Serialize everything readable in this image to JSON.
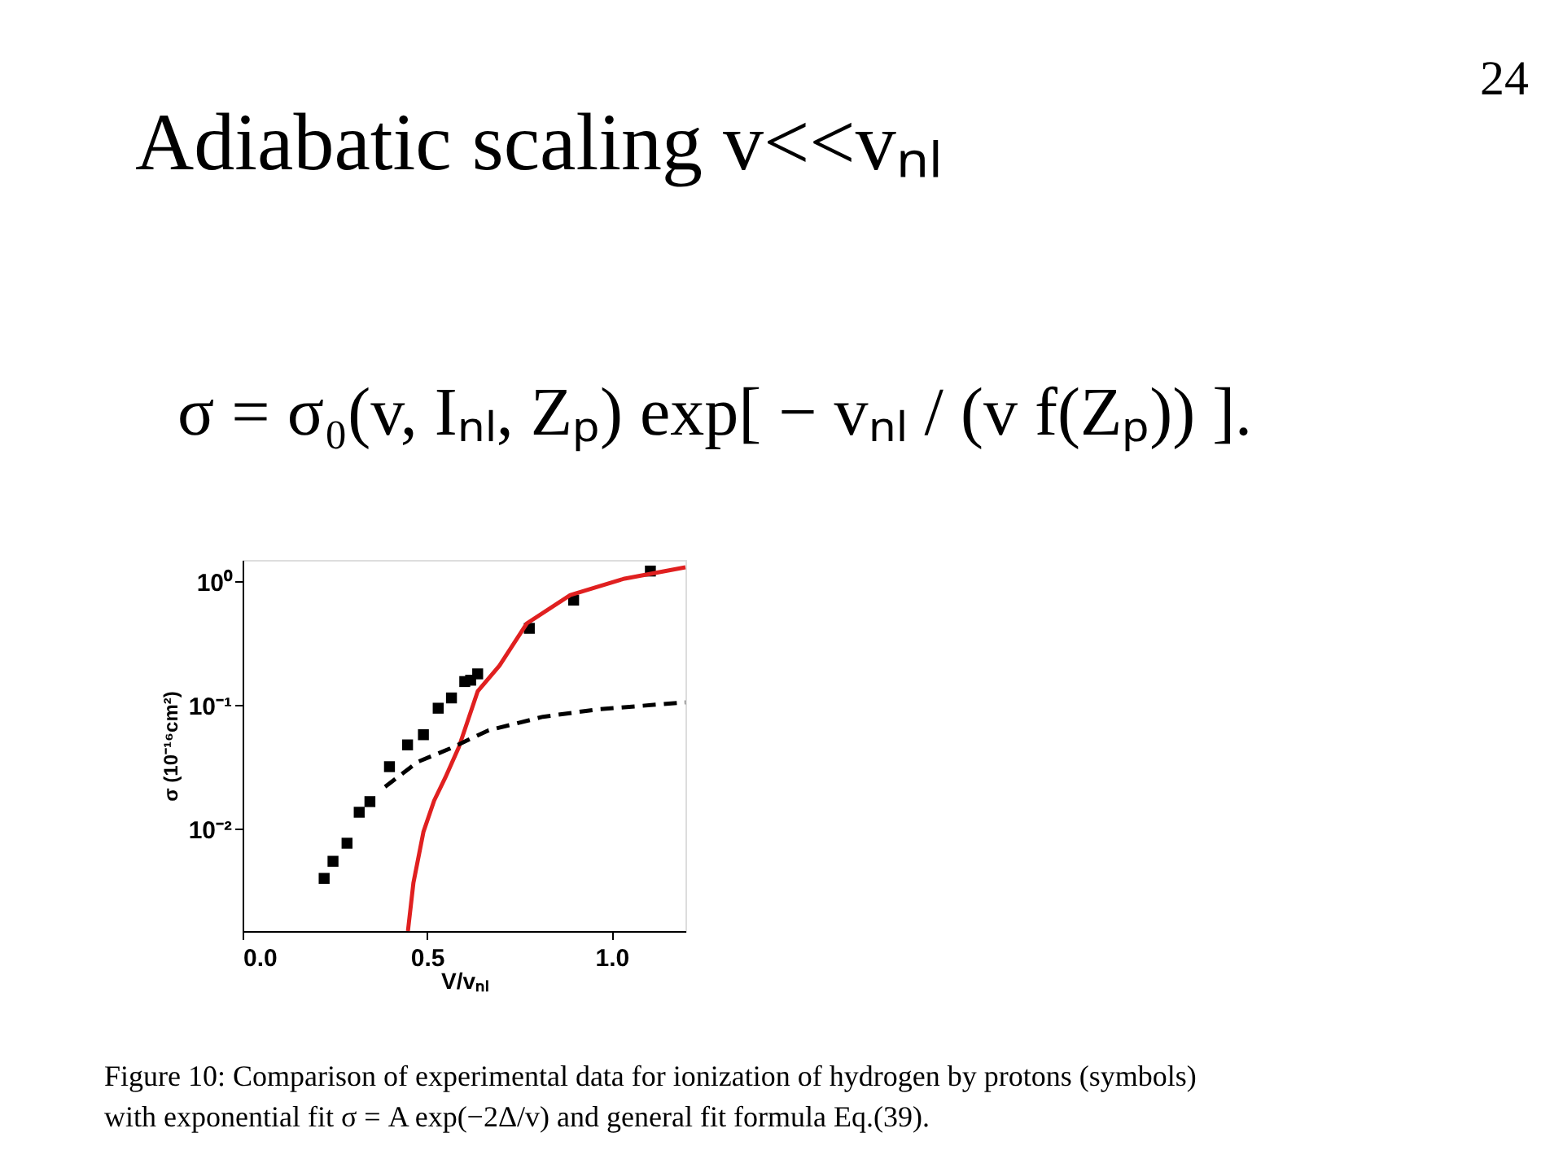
{
  "chart_data": {
    "type": "scatter",
    "title": "Adiabatic scaling v<<vₙₗ",
    "xlabel": "V/vₙₗ",
    "ylabel": "σ (10⁻¹⁶cm²)",
    "annotations": [
      "24",
      "σ = σ₀(v, Iₙₗ, Zₚ) exp[ − vₙₗ / (v f(Zₚ)) ].",
      "Figure 10: Comparison of experimental data for ionization of hydrogen by protons (symbols)",
      "with exponential fit σ = A exp(−2Δ/v) and general fit formula Eq.(39)."
    ],
    "log": "y",
    "grid": false,
    "xlim": [
      0,
      1.2
    ],
    "ylim": [
      0.0015,
      1.5
    ],
    "xticks": [
      {
        "value": 0,
        "label": "0.0"
      },
      0.5,
      {
        "value": 1,
        "label": "1.0"
      }
    ],
    "yticks": [
      {
        "value": 0.01,
        "label": "10⁻²"
      },
      {
        "value": 0.1,
        "label": "10⁻¹"
      },
      {
        "value": 1,
        "label": "10⁰"
      }
    ],
    "series": [
      {
        "color": "#000000",
        "marker": "square",
        "x": [
          0.221,
          0.245,
          0.283,
          0.316,
          0.345,
          0.398,
          0.447,
          0.49,
          0.53,
          0.566,
          0.602,
          0.618,
          0.637,
          0.777,
          0.897,
          1.105
        ],
        "values": [
          0.004,
          0.0055,
          0.0077,
          0.0137,
          0.0167,
          0.032,
          0.048,
          0.058,
          0.095,
          0.115,
          0.156,
          0.16,
          0.18,
          0.42,
          0.71,
          1.22
        ]
      },
      {
        "type": "line",
        "color": "#e02020",
        "line_style": "solid",
        "marker": "none",
        "x": [
          0.448,
          0.463,
          0.49,
          0.519,
          0.549,
          0.586,
          0.637,
          0.696,
          0.77,
          0.888,
          1.035,
          1.2
        ],
        "values": [
          0.0015,
          0.0037,
          0.0095,
          0.017,
          0.026,
          0.046,
          0.13,
          0.21,
          0.46,
          0.78,
          1.06,
          1.31
        ]
      },
      {
        "type": "line",
        "color": "#000000",
        "line_style": "dashed",
        "marker": "none",
        "x": [
          0.386,
          0.475,
          0.563,
          0.667,
          0.814,
          0.962,
          1.2
        ],
        "values": [
          0.022,
          0.035,
          0.045,
          0.063,
          0.081,
          0.093,
          0.106
        ]
      }
    ]
  }
}
